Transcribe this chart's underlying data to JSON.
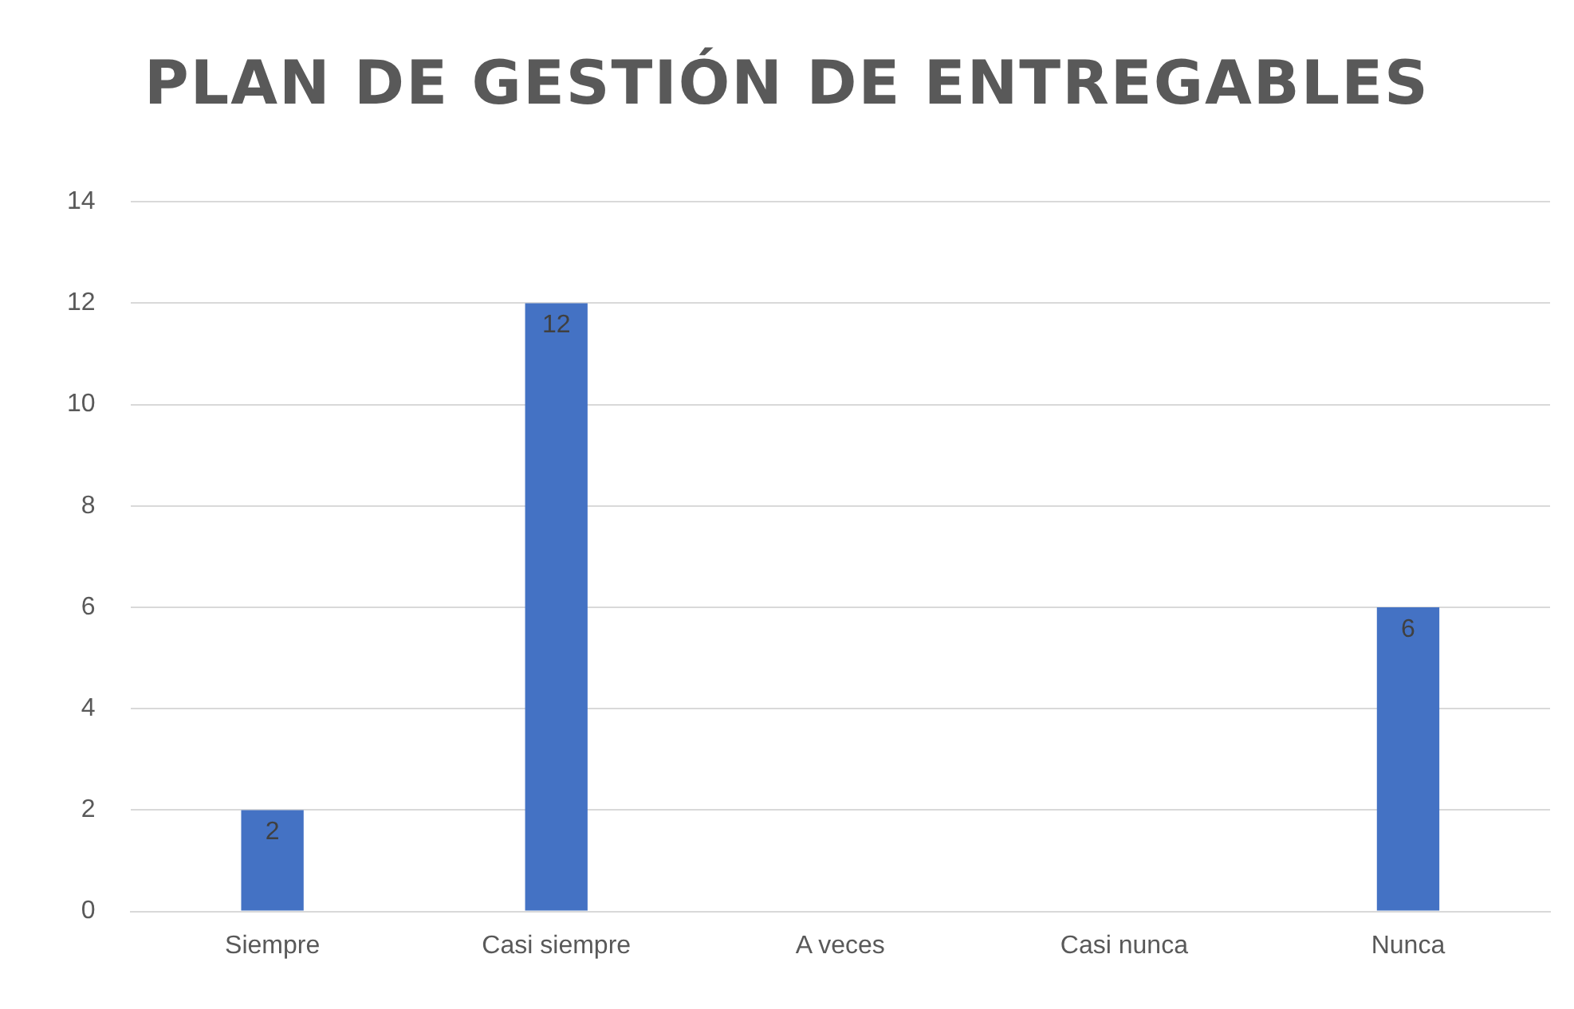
{
  "chart_data": {
    "type": "bar",
    "title": "PLAN DE GESTIÓN DE ENTREGABLES",
    "categories": [
      "Siempre",
      "Casi siempre",
      "A veces",
      "Casi nunca",
      "Nunca"
    ],
    "values": [
      2,
      12,
      0,
      0,
      6
    ],
    "value_labels": [
      "2",
      "12",
      null,
      null,
      "6"
    ],
    "color": "#4472c4",
    "ylim": [
      0,
      14
    ],
    "yticks": [
      0,
      2,
      4,
      6,
      8,
      10,
      12,
      14
    ],
    "grid": "y",
    "legend": false
  }
}
